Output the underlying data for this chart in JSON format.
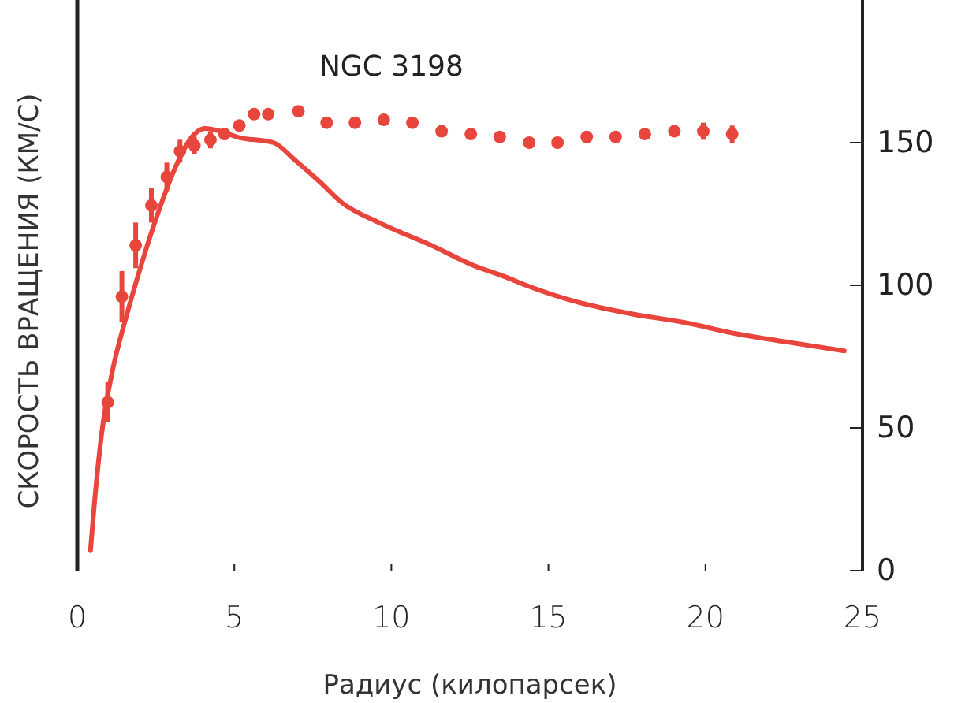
{
  "chart_data": {
    "type": "scatter",
    "title": "NGC 3198",
    "xlabel": "Радиус (килопарсек)",
    "ylabel": "СКОРОСТЬ ВРАЩЕНИЯ (КМ/С)",
    "xlim": [
      0,
      25
    ],
    "xticks": [
      0,
      5,
      10,
      15,
      20,
      25
    ],
    "ylim": [
      0,
      200
    ],
    "yticks": [
      0,
      50,
      100,
      150
    ],
    "grid": false,
    "series": [
      {
        "color": "#e8453c",
        "marker": "circle",
        "x": [
          0.97,
          1.42,
          1.86,
          2.36,
          2.85,
          3.27,
          3.73,
          4.24,
          4.69,
          5.16,
          5.63,
          6.08,
          7.04,
          7.94,
          8.84,
          9.76,
          10.67,
          11.6,
          12.53,
          13.45,
          14.39,
          15.29,
          16.22,
          17.14,
          18.07,
          19.01,
          19.93,
          20.85
        ],
        "values": [
          59,
          96,
          114,
          128,
          138,
          147,
          149,
          151,
          153,
          156,
          160,
          160,
          161,
          157,
          157,
          158,
          157,
          154,
          153,
          152,
          150,
          150,
          152,
          152,
          153,
          154,
          154,
          153
        ],
        "errors": [
          7,
          9,
          8,
          6,
          5,
          4,
          3,
          3,
          2,
          null,
          null,
          null,
          null,
          null,
          null,
          null,
          null,
          null,
          null,
          null,
          null,
          null,
          null,
          null,
          null,
          null,
          3,
          3
        ]
      },
      {
        "type": "line",
        "color": "#e8453c",
        "line_style": "solid",
        "x": [
          0.42,
          0.55,
          0.8,
          1.14,
          1.56,
          2.06,
          2.56,
          3.15,
          3.65,
          4.07,
          4.57,
          5.08,
          6.25,
          6.92,
          7.75,
          8.42,
          9.6,
          11.27,
          12.61,
          13.62,
          14.29,
          15.96,
          17.64,
          19.31,
          20.99,
          22.66,
          24.42
        ],
        "values": [
          7,
          24,
          50,
          71,
          89,
          108,
          125,
          142,
          152,
          155,
          154,
          152,
          150,
          144,
          136,
          129,
          122,
          114,
          107,
          103,
          100,
          94,
          90,
          87,
          83,
          80,
          77
        ]
      }
    ]
  }
}
